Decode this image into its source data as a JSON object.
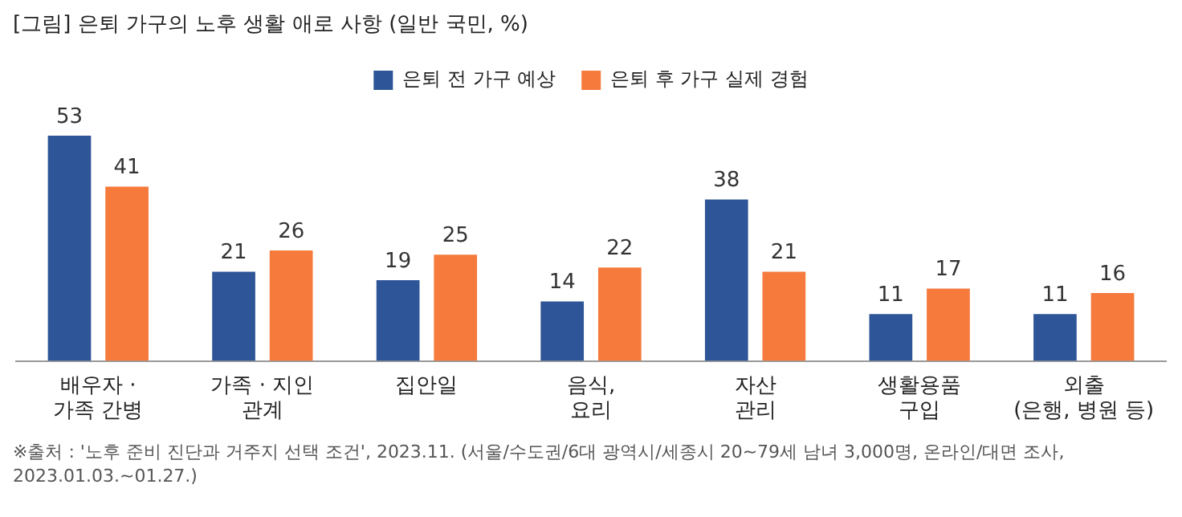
{
  "chart_data": {
    "type": "bar",
    "title": "[그림] 은퇴 가구의 노후 생활 애로 사항 (일반 국민, %)",
    "categories": [
      "배우자 ·\n가족 간병",
      "가족 · 지인\n관계",
      "집안일",
      "음식,\n요리",
      "자산\n관리",
      "생활용품\n구입",
      "외출\n(은행, 병원 등)"
    ],
    "series": [
      {
        "name": "은퇴 전 가구 예상",
        "color": "#2e5597",
        "values": [
          53,
          21,
          19,
          14,
          38,
          11,
          11
        ]
      },
      {
        "name": "은퇴 후 가구 실제 경험",
        "color": "#f57a3b",
        "values": [
          41,
          26,
          25,
          22,
          21,
          17,
          16
        ]
      }
    ],
    "data_labels": true,
    "grid": false,
    "legend": "top",
    "annotations": [
      "※출처 : '노후 준비 진단과 거주지 선택 조건', 2023.11. (서울/수도권/6대 광역시/세종시 20~79세 남녀 3,000명, 온라인/대면 조사,\n2023.01.03.~01.27.)"
    ]
  }
}
